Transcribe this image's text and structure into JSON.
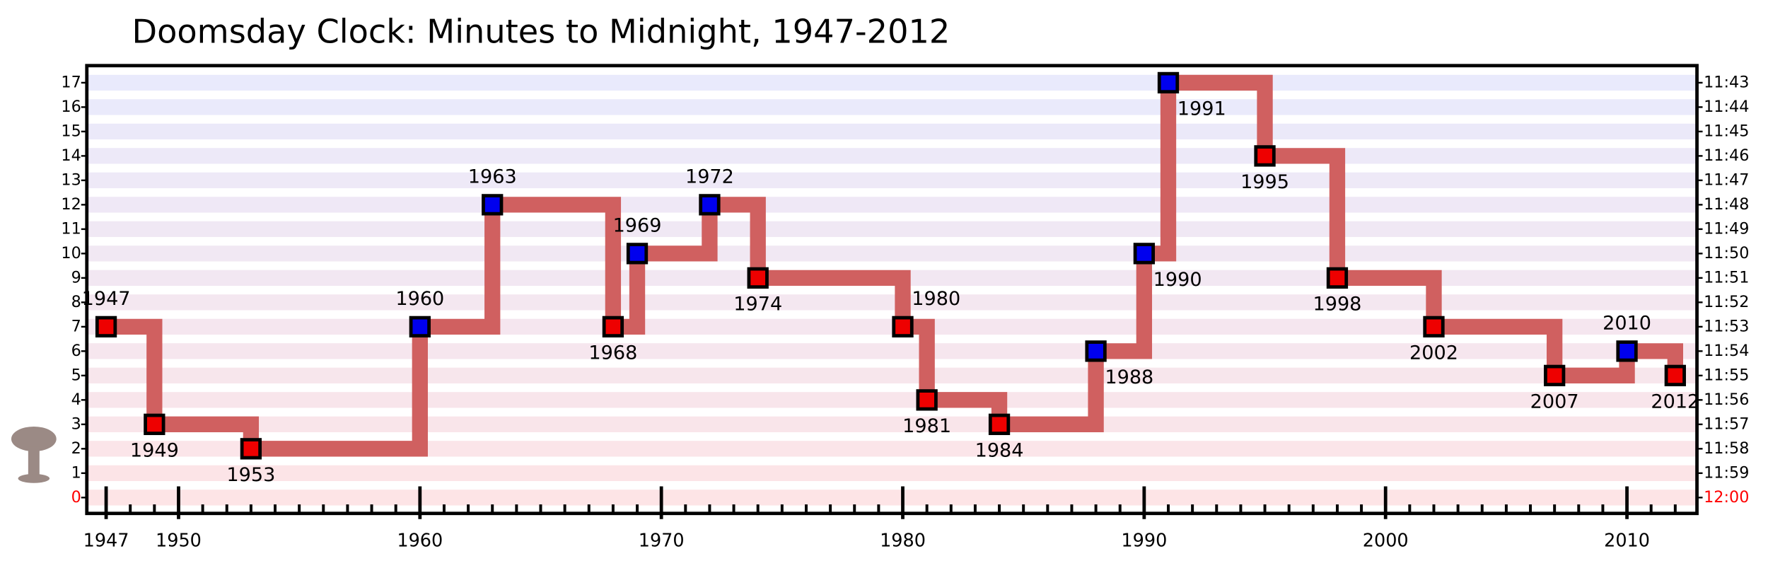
{
  "chart_data": {
    "type": "step",
    "title": "Doomsday Clock: Minutes to Midnight, 1947-2012",
    "x": [
      1947,
      1949,
      1953,
      1960,
      1963,
      1968,
      1969,
      1972,
      1974,
      1980,
      1981,
      1984,
      1988,
      1990,
      1991,
      1995,
      1998,
      2002,
      2007,
      2010,
      2012
    ],
    "values": [
      7,
      3,
      2,
      7,
      12,
      7,
      10,
      12,
      9,
      7,
      4,
      3,
      6,
      10,
      17,
      14,
      9,
      7,
      5,
      6,
      5
    ],
    "point_colors": [
      "#ee0000",
      "#ee0000",
      "#ee0000",
      "#0000ee",
      "#0000ee",
      "#ee0000",
      "#0000ee",
      "#0000ee",
      "#ee0000",
      "#ee0000",
      "#ee0000",
      "#ee0000",
      "#0000ee",
      "#0000ee",
      "#0000ee",
      "#ee0000",
      "#ee0000",
      "#ee0000",
      "#ee0000",
      "#0000ee",
      "#ee0000"
    ],
    "line_color": "#d06060",
    "xlim": [
      1946.2,
      2012.9
    ],
    "xticks": [
      1947,
      1950,
      1960,
      1970,
      1980,
      1990,
      2000,
      2010
    ],
    "xticks_minor": [
      1947,
      1948,
      1949,
      1950,
      1951,
      1952,
      1953,
      1954,
      1955,
      1956,
      1957,
      1958,
      1959,
      1960,
      1961,
      1962,
      1963,
      1964,
      1965,
      1966,
      1967,
      1968,
      1969,
      1970,
      1971,
      1972,
      1973,
      1974,
      1975,
      1976,
      1977,
      1978,
      1979,
      1980,
      1981,
      1982,
      1983,
      1984,
      1985,
      1986,
      1987,
      1988,
      1989,
      1990,
      1991,
      1992,
      1993,
      1994,
      1995,
      1996,
      1997,
      1998,
      1999,
      2000,
      2001,
      2002,
      2003,
      2004,
      2005,
      2006,
      2007,
      2008,
      2009,
      2010,
      2011,
      2012
    ],
    "ylim": [
      -0.65,
      17.7
    ],
    "yticks": [
      0,
      1,
      2,
      3,
      4,
      5,
      6,
      7,
      8,
      9,
      10,
      11,
      12,
      13,
      14,
      15,
      16,
      17
    ],
    "y2lim": [
      -0.65,
      17.7
    ],
    "y2ticks": [
      {
        "value": 17,
        "label": "11:43"
      },
      {
        "value": 16,
        "label": "11:44"
      },
      {
        "value": 15,
        "label": "11:45"
      },
      {
        "value": 14,
        "label": "11:46"
      },
      {
        "value": 13,
        "label": "11:47"
      },
      {
        "value": 12,
        "label": "11:48"
      },
      {
        "value": 11,
        "label": "11:49"
      },
      {
        "value": 10,
        "label": "11:50"
      },
      {
        "value": 9,
        "label": "11:51"
      },
      {
        "value": 8,
        "label": "11:52"
      },
      {
        "value": 7,
        "label": "11:53"
      },
      {
        "value": 6,
        "label": "11:54"
      },
      {
        "value": 5,
        "label": "11:55"
      },
      {
        "value": 4,
        "label": "11:56"
      },
      {
        "value": 3,
        "label": "11:57"
      },
      {
        "value": 2,
        "label": "11:58"
      },
      {
        "value": 1,
        "label": "11:59"
      },
      {
        "value": 0,
        "label": "12:00"
      }
    ]
  }
}
